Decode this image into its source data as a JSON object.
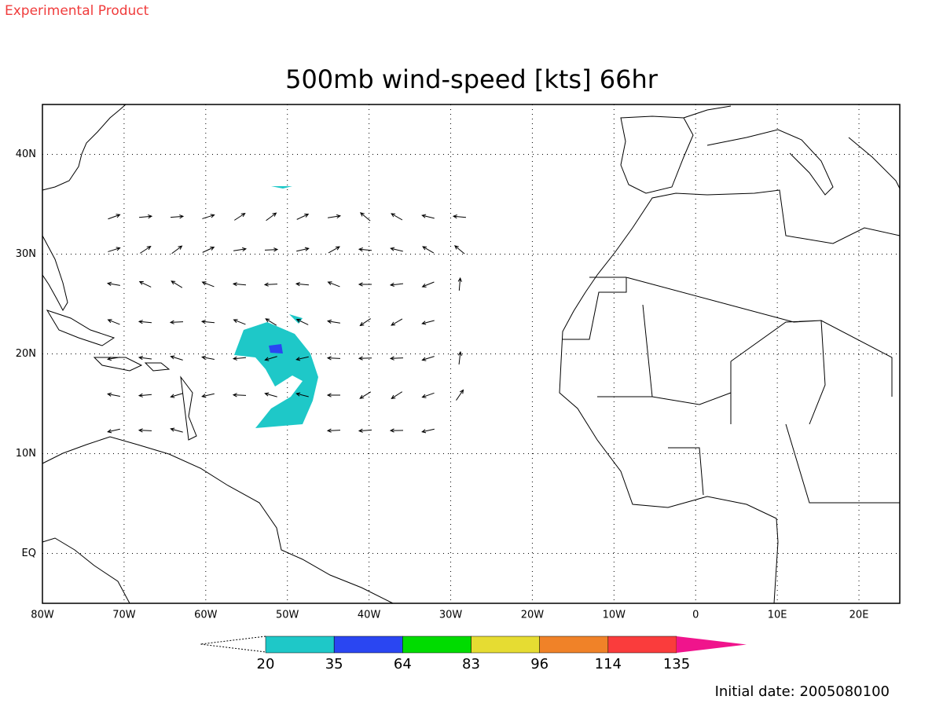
{
  "header": {
    "note": "Experimental Product"
  },
  "map": {
    "title": "500mb wind-speed [kts] 66hr",
    "lon_labels": [
      "80W",
      "70W",
      "60W",
      "50W",
      "40W",
      "30W",
      "20W",
      "10W",
      "0",
      "10E",
      "20E"
    ],
    "lat_labels": [
      "40N",
      "30N",
      "20N",
      "10N",
      "EQ"
    ]
  },
  "colorbar": {
    "levels": [
      20,
      35,
      64,
      83,
      96,
      114,
      135
    ],
    "colors": [
      "#1ec8c8",
      "#2a46f2",
      "#00dc00",
      "#e6dc32",
      "#f08228",
      "#fa3c3c",
      "#f0148c"
    ]
  },
  "footer": {
    "initial_date": "Initial date: 2005080100"
  }
}
